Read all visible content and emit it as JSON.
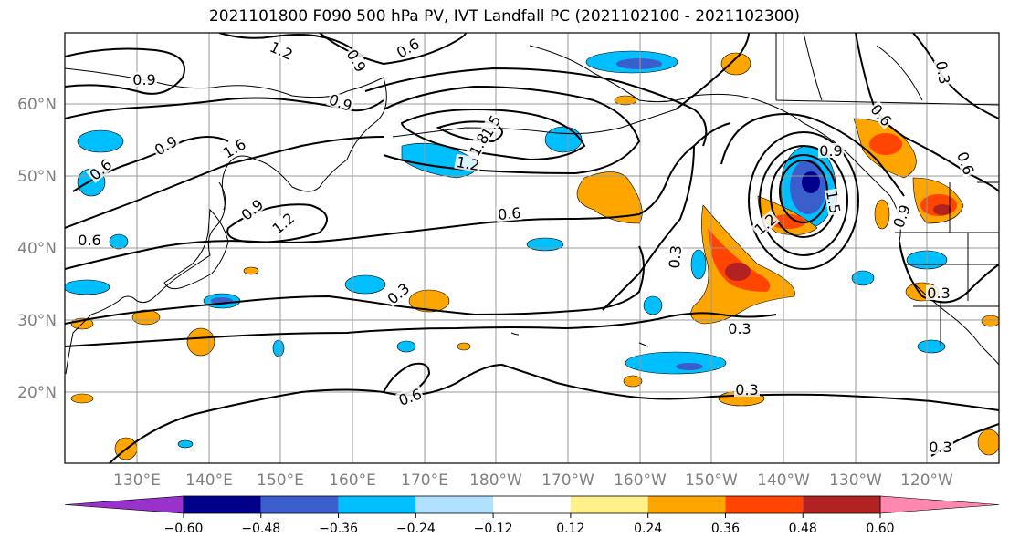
{
  "title": "2021101800 F090 500 hPa PV, IVT Landfall PC (2021102100 - 2021102300)",
  "lat_labels": [
    "60°N",
    "50°N",
    "40°N",
    "30°N",
    "20°N"
  ],
  "lon_labels": [
    "130°E",
    "140°E",
    "150°E",
    "160°E",
    "170°E",
    "180°W",
    "170°W",
    "160°W",
    "150°W",
    "140°W",
    "130°W",
    "120°W"
  ],
  "contour_labels": [
    "1.2",
    "0.6",
    "0.9",
    "0.9",
    "0.9",
    "0.9",
    "1.6",
    "0.6",
    "1.5",
    "1.8",
    "1.2",
    "0.9",
    "1.2",
    "0.6",
    "0.3",
    "0.6",
    "1.2",
    "1.5",
    "0.3",
    "0.3",
    "0.6",
    "0.3",
    "0.6",
    "0.3",
    "0.3",
    "0.3",
    "0.6",
    "0.9",
    "0.9"
  ],
  "colorbar": {
    "ticks": [
      "−0.60",
      "−0.48",
      "−0.36",
      "−0.24",
      "−0.12",
      "0.12",
      "0.24",
      "0.36",
      "0.48",
      "0.60"
    ],
    "colors": [
      "#9932cc",
      "#00008b",
      "#3a5fcd",
      "#00bfff",
      "#b0e2ff",
      "#ffffff",
      "#fff08a",
      "#ffa500",
      "#ff4500",
      "#b22222",
      "#ff88b0"
    ]
  }
}
